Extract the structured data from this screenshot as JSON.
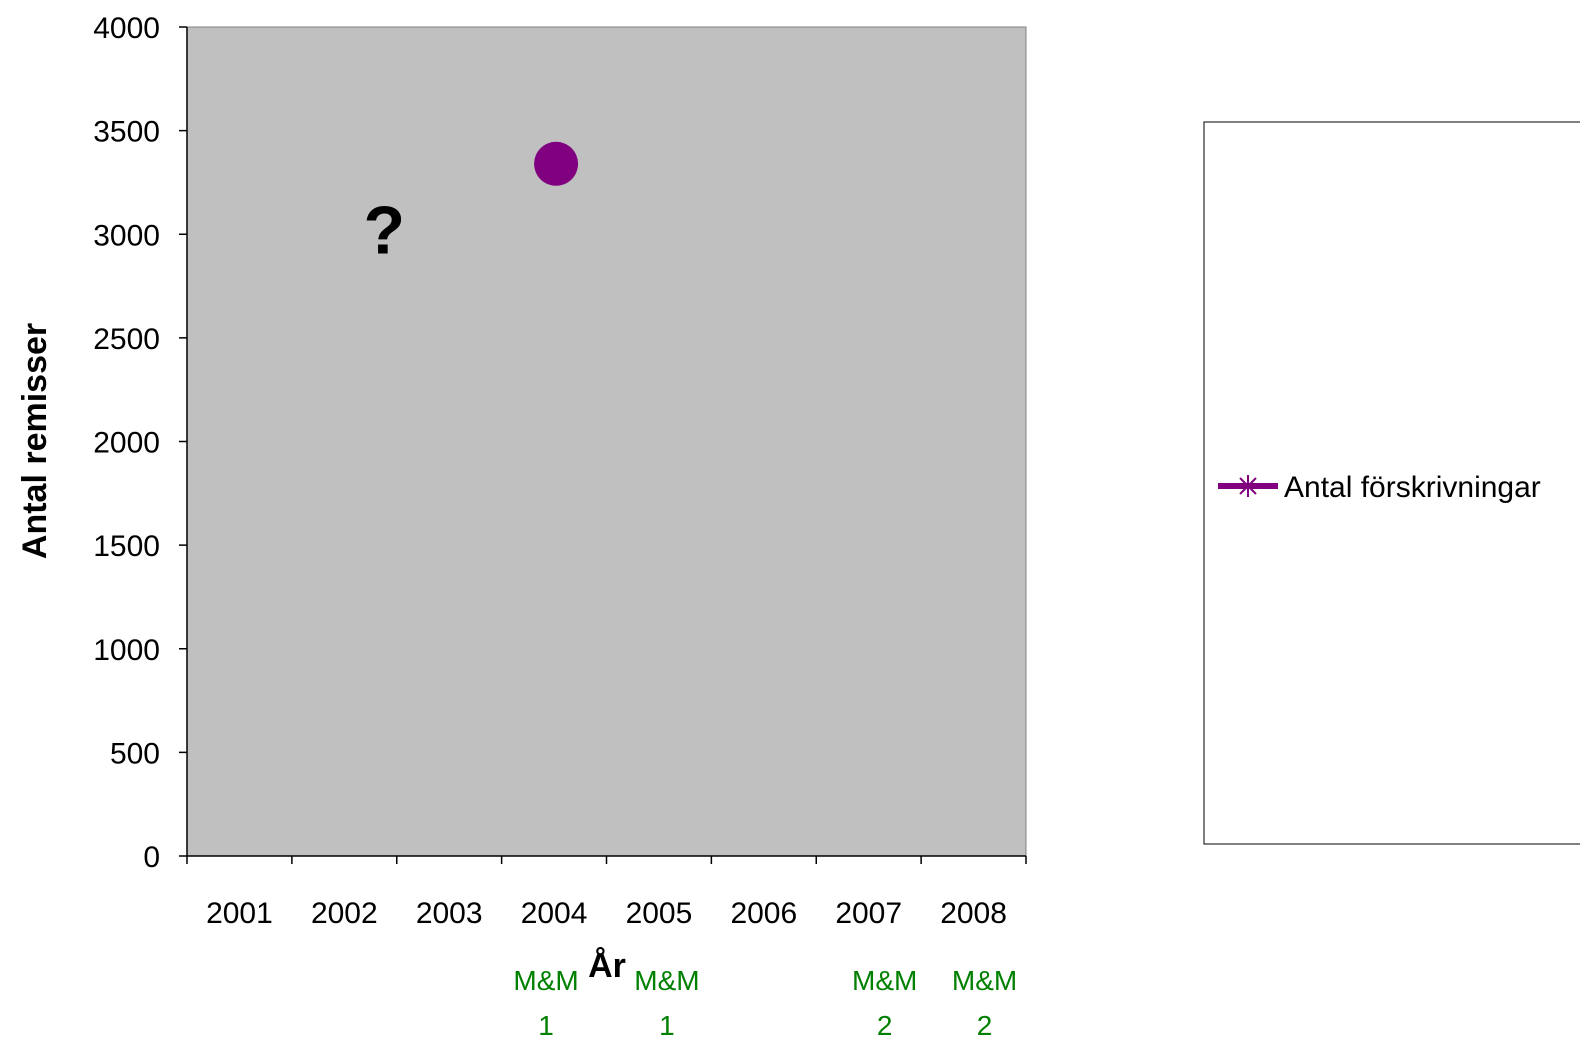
{
  "chart_data": {
    "type": "scatter",
    "title": "",
    "xlabel": "År",
    "ylabel": "Antal remisser",
    "categories": [
      "2001",
      "2002",
      "2003",
      "2004",
      "2005",
      "2006",
      "2007",
      "2008"
    ],
    "ylim": [
      0,
      4000
    ],
    "yticks": [
      0,
      500,
      1000,
      1500,
      2000,
      2500,
      3000,
      3500,
      4000
    ],
    "grid": false,
    "plot_background": "#c0c0c0",
    "series": [
      {
        "name": "Antal förskrivningar",
        "color": "#800080",
        "marker": "asterisk",
        "points": [
          {
            "x": "2004",
            "y": 3340
          }
        ]
      }
    ],
    "highlight_point": {
      "x": "2004",
      "y": 3340,
      "color": "#800080"
    },
    "annotations": [
      {
        "text": "?",
        "x": "2002",
        "y": 3000
      }
    ],
    "below_axis_labels": [
      {
        "category": "2004",
        "line1": "M&M",
        "line2": "1"
      },
      {
        "category": "2005",
        "line1": "M&M",
        "line2": "1"
      },
      {
        "category": "2007",
        "line1": "M&M",
        "line2": "2"
      },
      {
        "category": "2008",
        "line1": "M&M",
        "line2": "2"
      }
    ],
    "below_axis_label_color": "#008000",
    "legend": {
      "position": "right",
      "entries": [
        "Antal förskrivningar"
      ]
    }
  }
}
